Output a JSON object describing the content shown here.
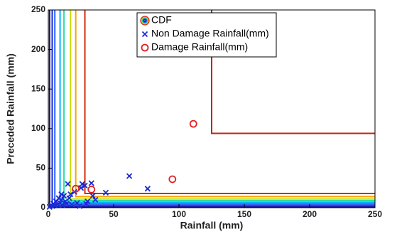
{
  "chart_data": {
    "type": "contour-scatter",
    "xlabel": "Rainfall (mm)",
    "ylabel": "Preceded Rainfall (mm)",
    "xlim": [
      0,
      250
    ],
    "ylim": [
      0,
      250
    ],
    "xticks": [
      0,
      50,
      100,
      150,
      200,
      250
    ],
    "yticks": [
      0,
      50,
      100,
      150,
      200,
      250
    ],
    "contour_legend": "CDF",
    "contours": [
      {
        "x": 1,
        "y": 1,
        "color": "#10109a"
      },
      {
        "x": 3,
        "y": 3,
        "color": "#1a2cd8"
      },
      {
        "x": 5,
        "y": 5,
        "color": "#2a62ff"
      },
      {
        "x": 9,
        "y": 7,
        "color": "#00b4ff"
      },
      {
        "x": 12,
        "y": 9,
        "color": "#30dca8"
      },
      {
        "x": 17,
        "y": 11,
        "color": "#c8e000"
      },
      {
        "x": 21,
        "y": 14,
        "color": "#ffa000"
      },
      {
        "x": 28,
        "y": 18,
        "color": "#d42a10"
      },
      {
        "x": 125,
        "y": 94,
        "color": "#c82010"
      }
    ],
    "series": [
      {
        "name": "Non Damage Rainfall(mm)",
        "marker": "x",
        "color": "#1a2bd6",
        "x": [
          1,
          2,
          3,
          4,
          5,
          6,
          7,
          8,
          9,
          10,
          11,
          12,
          13,
          14,
          15,
          16,
          18,
          20,
          22,
          24,
          26,
          28,
          29,
          30,
          33,
          34,
          36,
          44,
          62,
          76,
          17,
          25,
          10
        ],
        "y": [
          1,
          3,
          2,
          5,
          3,
          8,
          4,
          12,
          6,
          10,
          3,
          15,
          8,
          5,
          30,
          12,
          4,
          20,
          6,
          2,
          30,
          28,
          5,
          8,
          31,
          15,
          10,
          19,
          40,
          24,
          17,
          25,
          17
        ]
      },
      {
        "name": "Damage Rainfall(mm)",
        "marker": "o",
        "color": "#e02020",
        "x": [
          21,
          33,
          95,
          111
        ],
        "y": [
          24,
          23,
          36,
          106
        ]
      }
    ]
  }
}
